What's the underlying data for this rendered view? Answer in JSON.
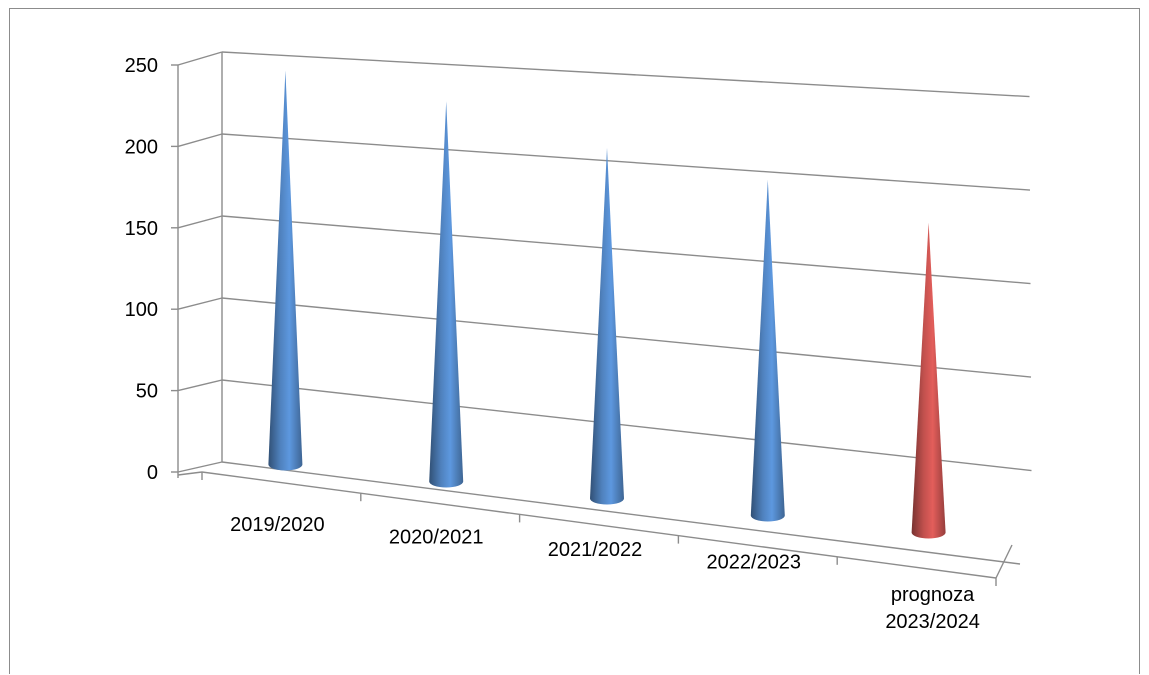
{
  "chart_data": {
    "type": "bar",
    "shape": "cone",
    "three_d": true,
    "categories": [
      "2019/2020",
      "2020/2021",
      "2021/2022",
      "2022/2023",
      "prognoza 2023/2024"
    ],
    "category_label_lines": [
      [
        "2019/2020"
      ],
      [
        "2020/2021"
      ],
      [
        "2021/2022"
      ],
      [
        "2022/2023"
      ],
      [
        "prognoza",
        "2023/2024"
      ]
    ],
    "values": [
      242,
      235,
      218,
      210,
      195
    ],
    "ylim": [
      0,
      250
    ],
    "yticks": [
      0,
      50,
      100,
      150,
      200,
      250
    ],
    "grid": true,
    "legend": "none",
    "title": "",
    "xlabel": "",
    "ylabel": "",
    "colors": {
      "actual": "#4f81bd",
      "forecast": "#c0504d",
      "grid": "#8c8c8c"
    },
    "point_colors": [
      "actual",
      "actual",
      "actual",
      "actual",
      "forecast"
    ]
  }
}
